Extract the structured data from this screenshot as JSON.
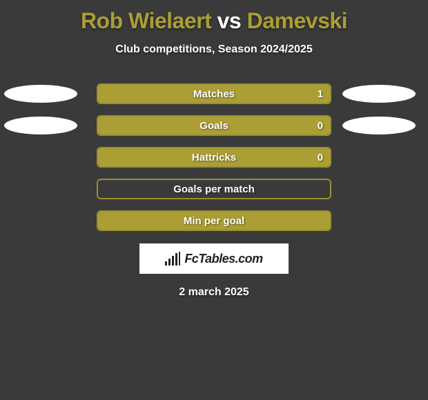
{
  "title": {
    "player1": "Rob Wielaert",
    "vs": "vs",
    "player2": "Damevski",
    "player1_color": "#aa9e35",
    "vs_color": "#ffffff",
    "player2_color": "#aa9e35"
  },
  "subtitle": "Club competitions, Season 2024/2025",
  "bar_border_color": "#9a8f2f",
  "bar_fill_color": "#aa9e35",
  "background_color": "#3a3a3a",
  "rows": [
    {
      "label": "Matches",
      "value_right": "1",
      "fill_pct": 100,
      "show_value": true,
      "left_ellipse": true,
      "right_ellipse": true
    },
    {
      "label": "Goals",
      "value_right": "0",
      "fill_pct": 100,
      "show_value": true,
      "left_ellipse": true,
      "right_ellipse": true
    },
    {
      "label": "Hattricks",
      "value_right": "0",
      "fill_pct": 100,
      "show_value": true,
      "left_ellipse": false,
      "right_ellipse": false
    },
    {
      "label": "Goals per match",
      "value_right": "",
      "fill_pct": 0,
      "show_value": false,
      "left_ellipse": false,
      "right_ellipse": false
    },
    {
      "label": "Min per goal",
      "value_right": "",
      "fill_pct": 100,
      "show_value": false,
      "left_ellipse": false,
      "right_ellipse": false
    }
  ],
  "brand": "FcTables.com",
  "date": "2 march 2025"
}
